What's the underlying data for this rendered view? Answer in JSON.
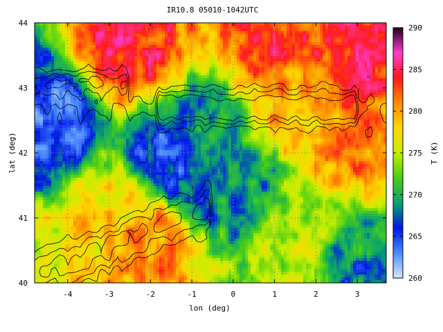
{
  "chart_data": {
    "type": "heatmap",
    "title": "IR10.8 05010-1042UTC",
    "xlabel": "lon (deg)",
    "ylabel": "lat (deg)",
    "xlim": [
      -4.8,
      3.7
    ],
    "ylim": [
      40,
      44
    ],
    "xticks": [
      "-4",
      "-3",
      "-2",
      "-1",
      "0",
      "1",
      "2",
      "3"
    ],
    "xtick_values": [
      -4,
      -3,
      -2,
      -1,
      0,
      1,
      2,
      3
    ],
    "yticks": [
      "40",
      "41",
      "42",
      "43",
      "44"
    ],
    "ytick_values": [
      40,
      41,
      42,
      43,
      44
    ],
    "grid": true,
    "colorbar": {
      "label": "T (K)",
      "range": [
        260,
        290
      ],
      "ticks": [
        "260",
        "265",
        "270",
        "275",
        "280",
        "285",
        "290"
      ],
      "tick_values": [
        260,
        265,
        270,
        275,
        280,
        285,
        290
      ]
    },
    "temperature_regions_K": [
      {
        "lon": -2.5,
        "lat": 43.6,
        "T": 284
      },
      {
        "lon": 1.0,
        "lat": 43.7,
        "T": 283
      },
      {
        "lon": 3.2,
        "lat": 43.6,
        "T": 284
      },
      {
        "lon": 1.2,
        "lat": 42.85,
        "T": 280
      },
      {
        "lon": -0.5,
        "lat": 42.3,
        "T": 269
      },
      {
        "lon": -1.5,
        "lat": 41.9,
        "T": 265
      },
      {
        "lon": 0.0,
        "lat": 41.4,
        "T": 268
      },
      {
        "lon": -3.0,
        "lat": 41.0,
        "T": 278
      },
      {
        "lon": -2.0,
        "lat": 40.6,
        "T": 281
      },
      {
        "lon": 1.5,
        "lat": 40.7,
        "T": 275
      },
      {
        "lon": 3.0,
        "lat": 42.2,
        "T": 281
      },
      {
        "lon": -4.5,
        "lat": 42.5,
        "T": 264
      },
      {
        "lon": 3.0,
        "lat": 40.3,
        "T": 268
      }
    ]
  }
}
